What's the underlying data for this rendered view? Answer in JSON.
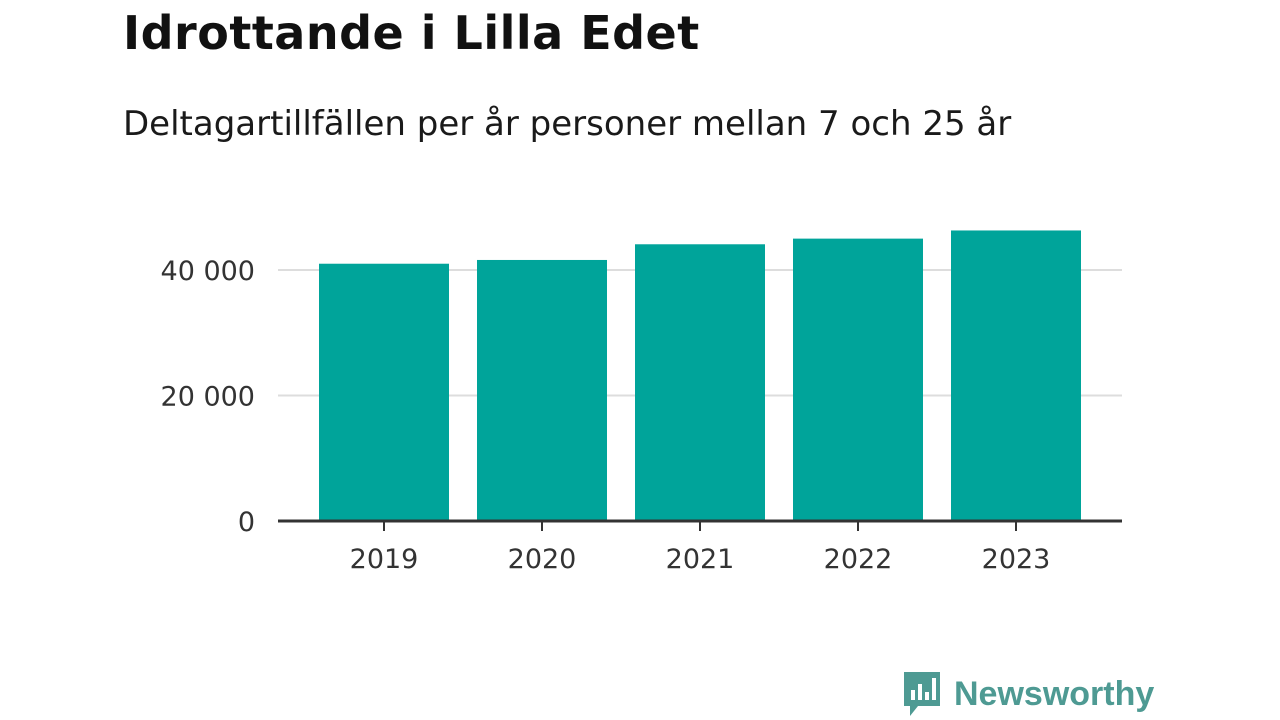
{
  "header": {
    "title": "Idrottande i Lilla Edet",
    "subtitle": "Deltagartillfällen per år personer mellan 7 och 25 år"
  },
  "chart_data": {
    "type": "bar",
    "categories": [
      "2019",
      "2020",
      "2021",
      "2022",
      "2023"
    ],
    "values": [
      41000,
      41600,
      44100,
      45000,
      46300
    ],
    "ylim": [
      0,
      50000
    ],
    "yticks": [
      0,
      20000,
      40000
    ],
    "ytick_labels": [
      "0",
      "20 000",
      "40 000"
    ],
    "grid": true,
    "bar_color": "#00a49a"
  },
  "branding": {
    "name": "Newsworthy",
    "color": "#4e9a93",
    "icon": "bar-chart-speech-bubble-icon"
  }
}
